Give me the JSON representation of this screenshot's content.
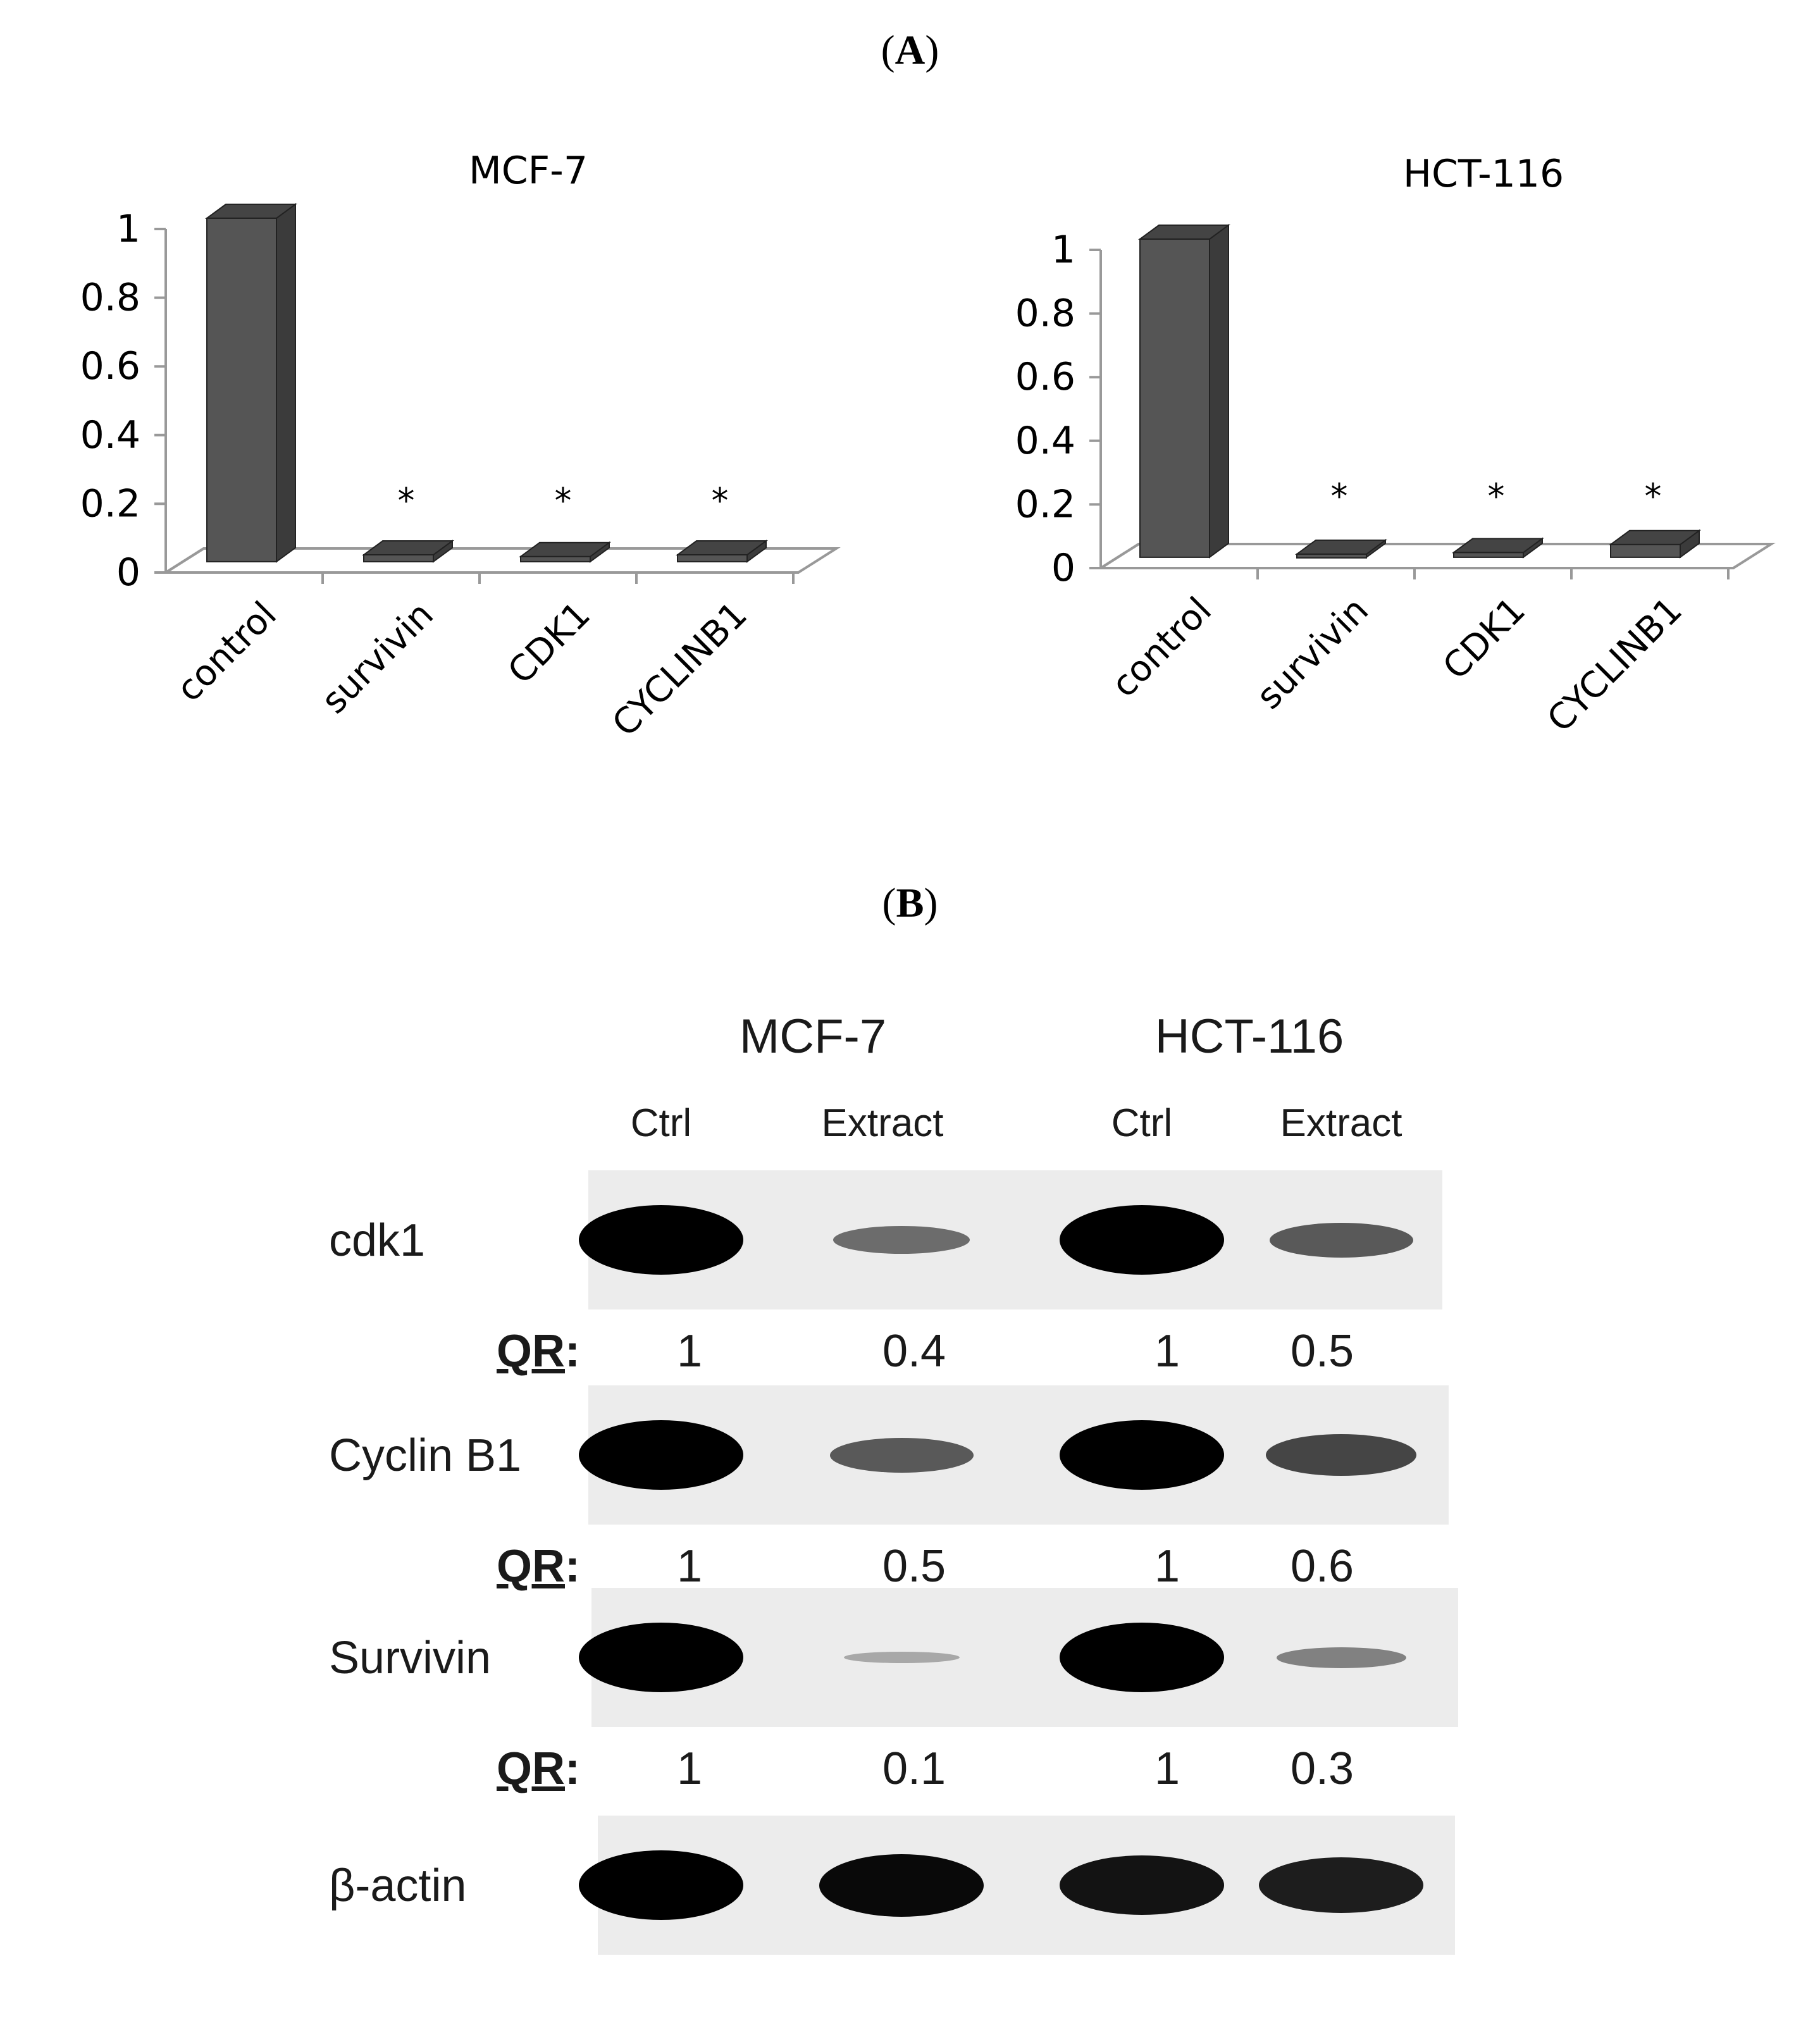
{
  "panels": {
    "a": "A",
    "b": "B"
  },
  "chart_data": [
    {
      "type": "bar",
      "style": "3d",
      "title": "MCF-7",
      "categories": [
        "control",
        "survivin",
        "CDK1",
        "CYCLINB1"
      ],
      "values": [
        1.0,
        0.02,
        0.015,
        0.02
      ],
      "significance": [
        "",
        "*",
        "*",
        "*"
      ],
      "yticks": [
        "0",
        "0.2",
        "0.4",
        "0.6",
        "0.8",
        "1"
      ],
      "ylim": [
        0,
        1
      ],
      "bar_color": "#555555",
      "grid": false
    },
    {
      "type": "bar",
      "style": "3d",
      "title": "HCT-116",
      "categories": [
        "control",
        "survivin",
        "CDK1",
        "CYCLINB1"
      ],
      "values": [
        1.0,
        0.01,
        0.015,
        0.04
      ],
      "significance": [
        "",
        "*",
        "*",
        "*"
      ],
      "yticks": [
        "0",
        "0.2",
        "0.4",
        "0.6",
        "0.8",
        "1"
      ],
      "ylim": [
        0,
        1
      ],
      "bar_color": "#555555",
      "grid": false
    }
  ],
  "blot": {
    "cell_lines": [
      "MCF-7",
      "HCT-116"
    ],
    "lanes": [
      "Ctrl",
      "Extract",
      "Ctrl",
      "Extract"
    ],
    "qr_label": "QR",
    "rows": [
      {
        "label": "cdk1",
        "qr": [
          "1",
          "0.4",
          "1",
          "0.5"
        ],
        "intensity": [
          1,
          0.4,
          1,
          0.5
        ]
      },
      {
        "label": "Cyclin B1",
        "qr": [
          "1",
          "0.5",
          "1",
          "0.6"
        ],
        "intensity": [
          1,
          0.5,
          1,
          0.6
        ]
      },
      {
        "label": "Survivin",
        "qr": [
          "1",
          "0.1",
          "1",
          "0.3"
        ],
        "intensity": [
          1,
          0.1,
          1,
          0.3
        ]
      },
      {
        "label": "β-actin",
        "intensity": [
          1,
          0.9,
          0.85,
          0.8
        ]
      }
    ]
  }
}
